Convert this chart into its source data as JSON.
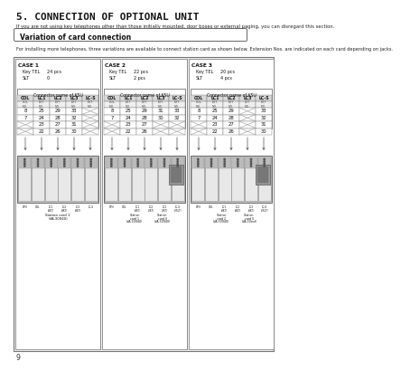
{
  "title": "5. CONNECTION OF OPTIONAL UNIT",
  "intro_text": "If you are not using key telephones other than those initially mounted, door boxes or external paging, you can disregard this section.",
  "section_title": "Variation of card connection",
  "body_text": "For installing more telephones, three variations are available to connect station card as shown below. Extension Nos. are indicated on each card depending on jacks.",
  "page_number": "9",
  "cases": [
    {
      "label": "CASE 1",
      "key_tel": "24 pcs",
      "slt": "0",
      "rows": [
        [
          "8",
          "25",
          "29",
          "33",
          "X"
        ],
        [
          "7",
          "24",
          "28",
          "32",
          "X"
        ],
        [
          "X",
          "23",
          "27",
          "31",
          "X"
        ],
        [
          "X",
          "22",
          "26",
          "30",
          "X"
        ]
      ],
      "slot_labels": [
        "DPH",
        "COL",
        "LC1\n(4KT)",
        "LC2\n(4KT)",
        "LC3\n(4KT)",
        "LC-S"
      ],
      "card_label1": "Station card 1",
      "card_label1b": "(VA-30940)",
      "card_label2": "",
      "card_label2b": "",
      "has_extra": false,
      "num_cards": 1
    },
    {
      "label": "CASE 2",
      "key_tel": "22 pcs",
      "slt": "2 pcs",
      "rows": [
        [
          "8",
          "25",
          "29",
          "31",
          "33"
        ],
        [
          "7",
          "24",
          "28",
          "30",
          "32"
        ],
        [
          "X",
          "23",
          "27",
          "X",
          "X"
        ],
        [
          "X",
          "22",
          "26",
          "X",
          "X"
        ]
      ],
      "slot_labels": [
        "DPH",
        "COL",
        "LC1\n(4KT)",
        "LC2\n(2KT)",
        "LC3\n(2KT)",
        "LC-S\n(2SLT)"
      ],
      "card_label1": "Station",
      "card_label1b": "card 1",
      "card_label1c": "(VA-30940)",
      "card_label2": "Station",
      "card_label2b": "card II",
      "card_label2c": "(VA-30940)",
      "has_extra": true,
      "num_cards": 2
    },
    {
      "label": "CASE 3",
      "key_tel": "20 pcs",
      "slt": "4 pcs",
      "rows": [
        [
          "8",
          "25",
          "29",
          "X",
          "33"
        ],
        [
          "7",
          "24",
          "28",
          "X",
          "32"
        ],
        [
          "X",
          "23",
          "27",
          "X",
          "31"
        ],
        [
          "X",
          "22",
          "26",
          "X",
          "30"
        ]
      ],
      "slot_labels": [
        "DPH",
        "COL",
        "LC1\n(4KT)",
        "LC2\n(4KT)",
        "LC3\n(4KT)",
        "LC-S\n(2SLT)"
      ],
      "card_label1": "Station",
      "card_label1b": "card 2",
      "card_label1c": "(VA-30940)",
      "card_label2": "Station",
      "card_label2b": "card II",
      "card_label2c": "(VA-30ind)",
      "has_extra": true,
      "num_cards": 2
    }
  ]
}
